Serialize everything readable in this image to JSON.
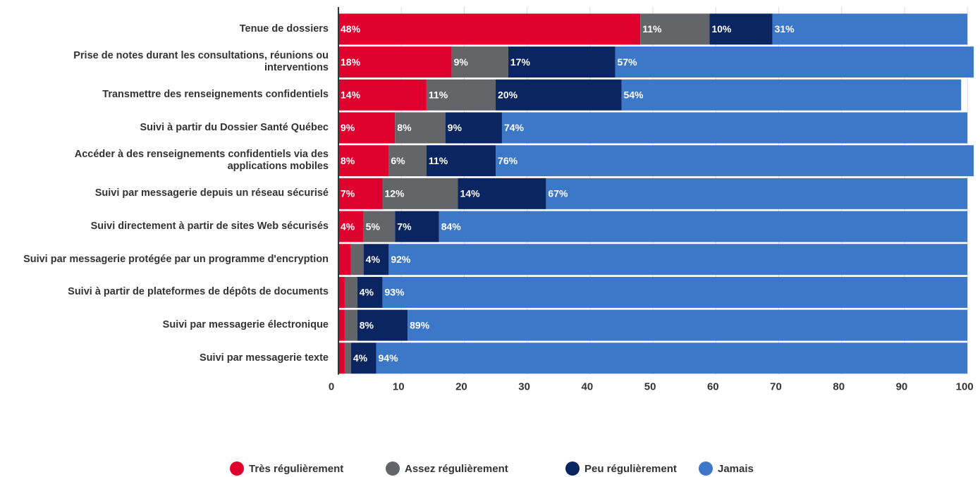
{
  "chart_data": {
    "type": "stacked_barh",
    "categories": [
      "Tenue de dossiers",
      "Prise de notes durant les consultations, réunions ou interventions",
      "Transmettre des renseignements confidentiels",
      "Suivi à partir du Dossier Santé Québec",
      "Accéder à des renseignements confidentiels via des applications mobiles",
      "Suivi par messagerie depuis un réseau sécurisé",
      "Suivi directement à partir de sites Web sécurisés",
      "Suivi par messagerie protégée par un programme d'encryption",
      "Suivi à partir de plateformes de dépôts de documents",
      "Suivi par messagerie électronique",
      "Suivi par messagerie texte"
    ],
    "series": [
      {
        "name": "Très régulièrement",
        "color": "#e0002d",
        "values": [
          48,
          18,
          14,
          9,
          8,
          7,
          4,
          2,
          1,
          1,
          1
        ],
        "value_labels": [
          "48%",
          "18%",
          "14%",
          "9%",
          "8%",
          "7%",
          "4%",
          null,
          null,
          null,
          null
        ]
      },
      {
        "name": "Assez régulièrement",
        "color": "#646569",
        "values": [
          11,
          9,
          11,
          8,
          6,
          12,
          5,
          2,
          2,
          2,
          1
        ],
        "value_labels": [
          "11%",
          "9%",
          "11%",
          "8%",
          "6%",
          "12%",
          "5%",
          null,
          null,
          null,
          null
        ]
      },
      {
        "name": "Peu régulièrement",
        "color": "#0b2560",
        "values": [
          10,
          17,
          20,
          9,
          11,
          14,
          7,
          4,
          4,
          8,
          4
        ],
        "value_labels": [
          "10%",
          "17%",
          "20%",
          "9%",
          "11%",
          "14%",
          "7%",
          "4%",
          "4%",
          "8%",
          "4%"
        ]
      },
      {
        "name": "Jamais",
        "color": "#3d77c7",
        "values": [
          31,
          57,
          54,
          74,
          76,
          67,
          84,
          92,
          93,
          89,
          94
        ],
        "value_labels": [
          "31%",
          "57%",
          "54%",
          "74%",
          "76%",
          "67%",
          "84%",
          "92%",
          "93%",
          "89%",
          "94%"
        ]
      }
    ],
    "xlim": [
      0,
      102
    ],
    "xticks": [
      0,
      10,
      20,
      30,
      40,
      50,
      60,
      70,
      80,
      90,
      100
    ],
    "grid": true
  }
}
